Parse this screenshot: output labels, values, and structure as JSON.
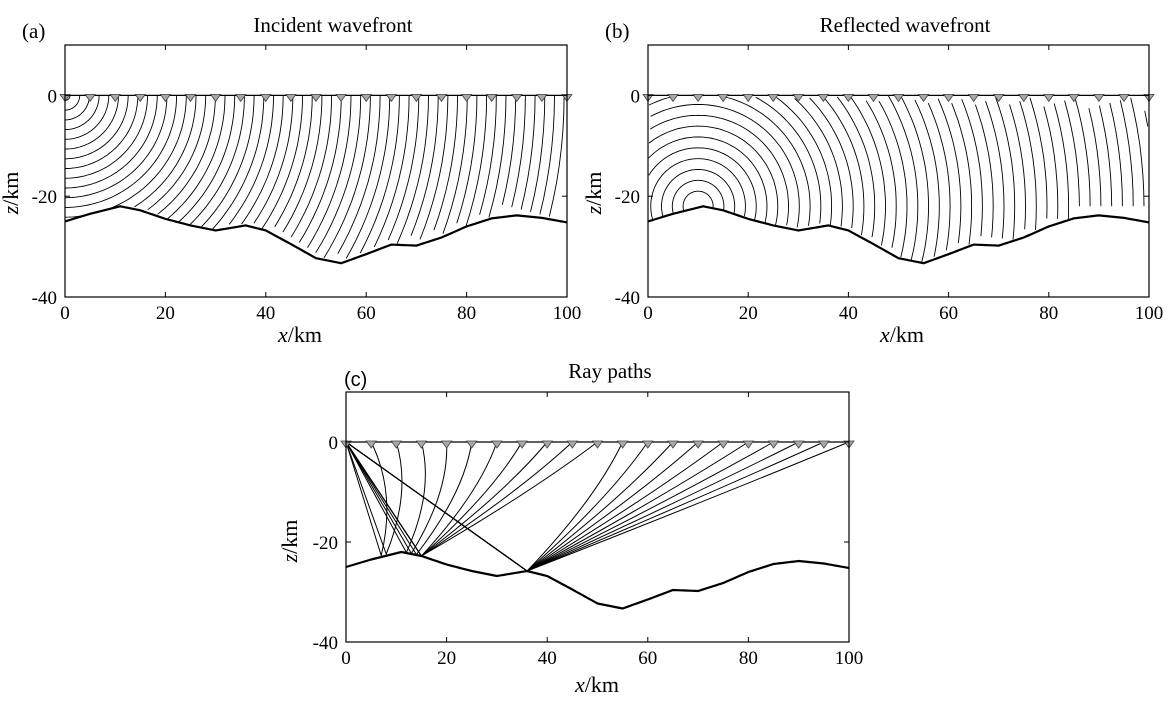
{
  "chart_data": [
    {
      "panel": "(a)",
      "type": "line",
      "title": "Incident wavefront",
      "xlabel_var": "x",
      "xlabel_unit": "/km",
      "ylabel_var": "z",
      "ylabel_unit": "/km",
      "xlim": [
        0,
        100
      ],
      "ylim": [
        -40,
        10
      ],
      "xticks": [
        "0",
        "20",
        "40",
        "60",
        "80",
        "100"
      ],
      "yticks": [
        "0",
        "-20",
        "-40"
      ],
      "source": [
        0,
        0
      ],
      "receivers_x": [
        0,
        5,
        10,
        15,
        20,
        25,
        30,
        35,
        40,
        45,
        50,
        55,
        60,
        65,
        70,
        75,
        80,
        85,
        90,
        95,
        100
      ],
      "interface": {
        "x": [
          0,
          5,
          11,
          15,
          20,
          25,
          30,
          33,
          36,
          40,
          45,
          50,
          55,
          60,
          65,
          70,
          75,
          80,
          85,
          90,
          95,
          100
        ],
        "z": [
          -25,
          -23.5,
          -22,
          -22.8,
          -24.5,
          -25.8,
          -26.8,
          -26.3,
          -25.8,
          -26.8,
          -29.5,
          -32.3,
          -33.3,
          -31.5,
          -29.6,
          -29.8,
          -28.2,
          -26,
          -24.4,
          -23.8,
          -24.3,
          -25.2
        ]
      },
      "wavefront_count": 52
    },
    {
      "panel": "(b)",
      "type": "line",
      "title": "Reflected wavefront",
      "xlabel_var": "x",
      "xlabel_unit": "/km",
      "ylabel_var": "z",
      "ylabel_unit": "/km",
      "xlim": [
        0,
        100
      ],
      "ylim": [
        -40,
        10
      ],
      "xticks": [
        "0",
        "20",
        "40",
        "60",
        "80",
        "100"
      ],
      "yticks": [
        "0",
        "-20",
        "-40"
      ],
      "source": [
        0,
        0
      ],
      "reflection_point": [
        10,
        -22
      ],
      "receivers_x": [
        0,
        5,
        10,
        15,
        20,
        25,
        30,
        35,
        40,
        45,
        50,
        55,
        60,
        65,
        70,
        75,
        80,
        85,
        90,
        95,
        100
      ],
      "interface": {
        "x": [
          0,
          5,
          11,
          15,
          20,
          25,
          30,
          33,
          36,
          40,
          45,
          50,
          55,
          60,
          65,
          70,
          75,
          80,
          85,
          90,
          95,
          100
        ],
        "z": [
          -25,
          -23.5,
          -22,
          -22.8,
          -24.5,
          -25.8,
          -26.8,
          -26.3,
          -25.8,
          -26.8,
          -29.5,
          -32.3,
          -33.3,
          -31.5,
          -29.6,
          -29.8,
          -28.2,
          -26,
          -24.4,
          -23.8,
          -24.3,
          -25.2
        ]
      },
      "wavefront_count": 44
    },
    {
      "panel": "(c)",
      "type": "line",
      "title": "Ray paths",
      "xlabel_var": "x",
      "xlabel_unit": "/km",
      "ylabel_var": "z",
      "ylabel_unit": "/km",
      "xlim": [
        0,
        100
      ],
      "ylim": [
        -40,
        10
      ],
      "xticks": [
        "0",
        "20",
        "40",
        "60",
        "80",
        "100"
      ],
      "yticks": [
        "0",
        "-20",
        "-40"
      ],
      "source": [
        0,
        0
      ],
      "receivers_x": [
        0,
        5,
        10,
        15,
        20,
        25,
        30,
        35,
        40,
        45,
        50,
        55,
        60,
        65,
        70,
        75,
        80,
        85,
        90,
        95,
        100
      ],
      "interface": {
        "x": [
          0,
          5,
          11,
          15,
          20,
          25,
          30,
          33,
          36,
          40,
          45,
          50,
          55,
          60,
          65,
          70,
          75,
          80,
          85,
          90,
          95,
          100
        ],
        "z": [
          -25,
          -23.5,
          -22,
          -22.8,
          -24.5,
          -25.8,
          -26.8,
          -26.3,
          -25.8,
          -26.8,
          -29.5,
          -32.3,
          -33.3,
          -31.5,
          -29.6,
          -29.8,
          -28.2,
          -26,
          -24.4,
          -23.8,
          -24.3,
          -25.2
        ]
      },
      "rays": [
        {
          "receiver_x": 5,
          "reflect": [
            7,
            -22.7
          ]
        },
        {
          "receiver_x": 10,
          "reflect": [
            8,
            -22.4
          ]
        },
        {
          "receiver_x": 15,
          "reflect": [
            12,
            -22.1
          ]
        },
        {
          "receiver_x": 20,
          "reflect": [
            13,
            -22.3
          ]
        },
        {
          "receiver_x": 25,
          "reflect": [
            14,
            -22.5
          ]
        },
        {
          "receiver_x": 30,
          "reflect": [
            15,
            -22.8
          ]
        },
        {
          "receiver_x": 35,
          "reflect": [
            15,
            -22.8
          ]
        },
        {
          "receiver_x": 40,
          "reflect": [
            15,
            -22.8
          ]
        },
        {
          "receiver_x": 45,
          "reflect": [
            15,
            -22.8
          ]
        },
        {
          "receiver_x": 50,
          "reflect": [
            15,
            -22.8
          ]
        },
        {
          "receiver_x": 55,
          "reflect": [
            36,
            -25.8
          ]
        },
        {
          "receiver_x": 60,
          "reflect": [
            36,
            -25.8
          ]
        },
        {
          "receiver_x": 65,
          "reflect": [
            36,
            -25.8
          ]
        },
        {
          "receiver_x": 70,
          "reflect": [
            36,
            -25.8
          ]
        },
        {
          "receiver_x": 75,
          "reflect": [
            36,
            -25.8
          ]
        },
        {
          "receiver_x": 80,
          "reflect": [
            36,
            -25.8
          ]
        },
        {
          "receiver_x": 85,
          "reflect": [
            36,
            -25.8
          ]
        },
        {
          "receiver_x": 90,
          "reflect": [
            36,
            -25.8
          ]
        },
        {
          "receiver_x": 95,
          "reflect": [
            36,
            -25.8
          ]
        },
        {
          "receiver_x": 100,
          "reflect": [
            36,
            -25.8
          ]
        }
      ]
    }
  ],
  "colors": {
    "ink": "#000000",
    "receiver_fill": "#a8a8a8",
    "background": "#ffffff"
  }
}
